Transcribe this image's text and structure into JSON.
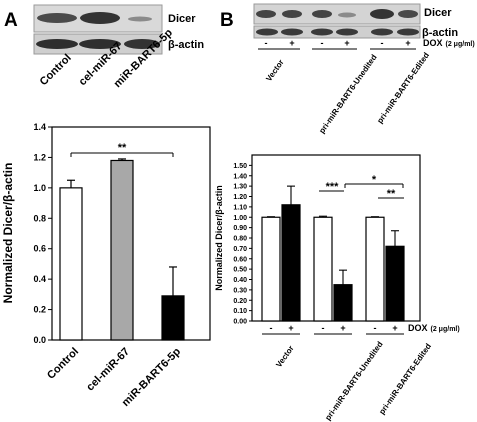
{
  "panel_a": {
    "letter": "A",
    "blot_labels": [
      "Dicer",
      "β-actin"
    ],
    "lane_labels": [
      "Control",
      "cel-miR-67",
      "miR-BART6-5p"
    ]
  },
  "panel_b": {
    "letter": "B",
    "blot_labels": [
      "Dicer",
      "β-actin"
    ],
    "dox_label": "DOX",
    "dox_conc": "(2 μg/ml)",
    "lane_signs": [
      "-",
      "+",
      "-",
      "+",
      "-",
      "+"
    ],
    "group_labels": [
      "Vector",
      "pri-miR-BART6-Unedited",
      "pri-miR-BART6-Edited"
    ]
  },
  "chart_data": [
    {
      "type": "bar",
      "categories": [
        "Control",
        "cel-miR-67",
        "miR-BART6-5p"
      ],
      "values": [
        1.0,
        1.18,
        0.29
      ],
      "errors": [
        0.05,
        0.01,
        0.19
      ],
      "colors": [
        "#ffffff",
        "#a8a8a8",
        "#000000"
      ],
      "ylabel": "Normalized Dicer/β-actin",
      "ylim": [
        0,
        1.4
      ],
      "yticks": [
        "0.0",
        "0.2",
        "0.4",
        "0.6",
        "0.8",
        "1.0",
        "1.2",
        "1.4"
      ],
      "annotations": [
        {
          "text": "**",
          "between": [
            "Control",
            "miR-BART6-5p"
          ]
        }
      ]
    },
    {
      "type": "bar",
      "groups": [
        "Vector",
        "pri-miR-BART6-Unedited",
        "pri-miR-BART6-Edited"
      ],
      "series": [
        {
          "condition": "-",
          "color": "#ffffff",
          "values": [
            1.0,
            1.0,
            1.0
          ],
          "errors": [
            0.005,
            0.01,
            0.005
          ]
        },
        {
          "condition": "+",
          "color": "#000000",
          "values": [
            1.12,
            0.35,
            0.72
          ],
          "errors": [
            0.18,
            0.14,
            0.15
          ]
        }
      ],
      "ylabel": "Normalized Dicer/β-actin",
      "ylim": [
        0,
        1.6
      ],
      "yticks": [
        "0.00",
        "0.10",
        "0.20",
        "0.30",
        "0.40",
        "0.50",
        "0.60",
        "0.70",
        "0.80",
        "0.90",
        "1.00",
        "1.10",
        "1.20",
        "1.30",
        "1.40",
        "1.50"
      ],
      "annotations": [
        {
          "text": "***",
          "between": [
            "pri-miR-BART6-Unedited -",
            "pri-miR-BART6-Unedited +"
          ]
        },
        {
          "text": "*",
          "between": [
            "pri-miR-BART6-Unedited +",
            "pri-miR-BART6-Edited +"
          ]
        },
        {
          "text": "**",
          "between": [
            "pri-miR-BART6-Edited -",
            "pri-miR-BART6-Edited +"
          ]
        }
      ]
    }
  ]
}
